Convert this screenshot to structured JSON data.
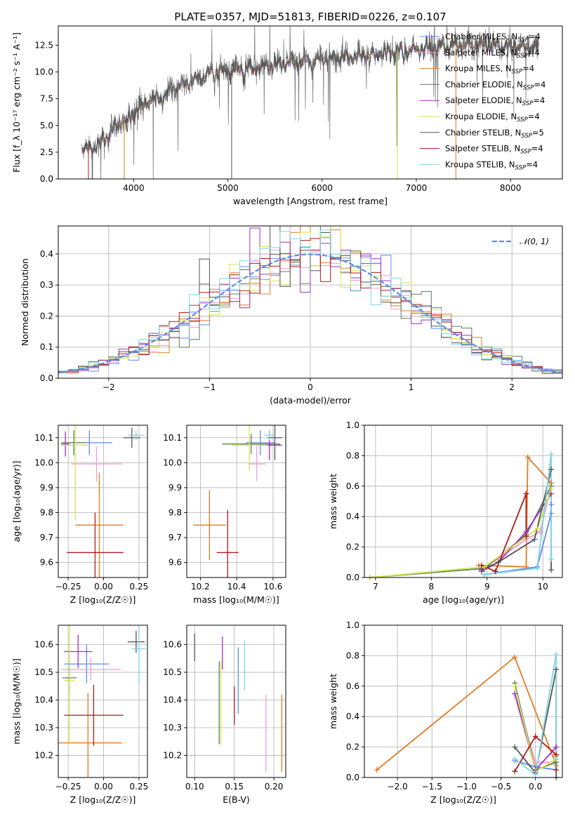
{
  "chart_data": [
    {
      "type": "line",
      "title": "PLATE=0357, MJD=51813, FIBERID=0226, z=0.107",
      "xlabel": "wavelength [Angstrom, rest frame]",
      "ylabel": "Flux [f_λ 10⁻¹⁷ erg cm⁻² s⁻¹ A⁻¹]",
      "xlim": [
        3200,
        8550
      ],
      "ylim": [
        0,
        14.3
      ],
      "xticks": [
        4000,
        5000,
        6000,
        7000,
        8000
      ],
      "yticks": [
        0.0,
        2.5,
        5.0,
        7.5,
        10.0,
        12.5
      ],
      "grid": false,
      "legend_position": "right",
      "continuum": {
        "x": [
          3450,
          3600,
          3700,
          3800,
          3900,
          4000,
          4100,
          4200,
          4300,
          4400,
          4500,
          4600,
          4700,
          4800,
          4900,
          5000,
          5200,
          5400,
          5600,
          5800,
          6000,
          6200,
          6400,
          6600,
          6800,
          7000,
          7200,
          7400,
          7600,
          7800,
          8000,
          8200,
          8300
        ],
        "y": [
          2.8,
          3.0,
          3.8,
          4.8,
          5.5,
          6.3,
          7.1,
          7.6,
          8.0,
          8.4,
          8.8,
          9.1,
          9.4,
          9.9,
          10.2,
          10.0,
          10.4,
          10.6,
          10.8,
          11.0,
          11.2,
          11.4,
          11.5,
          11.8,
          12.0,
          12.1,
          12.3,
          12.5,
          12.6,
          12.5,
          12.4,
          12.3,
          12.2
        ]
      },
      "series": [
        {
          "label": "Chabrier MILES, N",
          "sub": "SSP",
          "suffix": "=4",
          "color": "#5b8def"
        },
        {
          "label": "Salpeter MILES, N",
          "sub": "SSP",
          "suffix": "=4",
          "color": "#f09ad8"
        },
        {
          "label": "Kroupa MILES, N",
          "sub": "SSP",
          "suffix": "=4",
          "color": "#e07b24"
        },
        {
          "label": "Chabrier ELODIE, N",
          "sub": "SSP",
          "suffix": "=4",
          "color": "#5c7f5c"
        },
        {
          "label": "Salpeter ELODIE, N",
          "sub": "SSP",
          "suffix": "=4",
          "color": "#a02fc4"
        },
        {
          "label": "Kroupa ELODIE, N",
          "sub": "SSP",
          "suffix": "=4",
          "color": "#d7e64a"
        },
        {
          "label": "Chabrier STELIB, N",
          "sub": "SSP",
          "suffix": "=5",
          "color": "#555555"
        },
        {
          "label": "Salpeter STELIB, N",
          "sub": "SSP",
          "suffix": "=4",
          "color": "#b01b1b"
        },
        {
          "label": "Kroupa STELIB, N",
          "sub": "SSP",
          "suffix": "=4",
          "color": "#7fd6e0"
        }
      ]
    },
    {
      "type": "line",
      "xlabel": "(data-model)/error",
      "ylabel": "Normed distribution",
      "xlim": [
        -2.5,
        2.5
      ],
      "ylim": [
        0,
        0.49
      ],
      "xticks": [
        -2,
        -1,
        0,
        1,
        2
      ],
      "yticks": [
        0.0,
        0.1,
        0.2,
        0.3,
        0.4
      ],
      "grid": true,
      "legend_position": "top-right",
      "legend": "𝒩(0, 1)",
      "normal_curve": {
        "mean": 0,
        "sigma": 1,
        "color": "#5b8def"
      },
      "bin_width": 0.1
    },
    {
      "type": "scatter",
      "xlabel": "Z [log₁₀(Z/Z☉)]",
      "ylabel": "age  [log₁₀(age/yr)]",
      "xlim": [
        -0.32,
        0.31
      ],
      "ylim": [
        9.54,
        10.15
      ],
      "xticks": [
        -0.25,
        0.0,
        0.25
      ],
      "yticks": [
        9.6,
        9.7,
        9.8,
        9.9,
        10.0,
        10.1
      ],
      "grid": true,
      "points": [
        {
          "x": -0.1,
          "y": 10.08,
          "xerr": 0.16,
          "yerr": 0.05,
          "color": "#5b8def"
        },
        {
          "x": -0.05,
          "y": 9.995,
          "xerr": 0.18,
          "yerr": 0.07,
          "color": "#f09ad8"
        },
        {
          "x": -0.03,
          "y": 9.75,
          "xerr": 0.17,
          "yerr": 0.21,
          "color": "#e07b24"
        },
        {
          "x": -0.21,
          "y": 10.08,
          "xerr": 0.09,
          "yerr": 0.05,
          "color": "#5c7f5c"
        },
        {
          "x": -0.27,
          "y": 10.075,
          "xerr": 0.03,
          "yerr": 0.05,
          "color": "#a02fc4"
        },
        {
          "x": -0.2,
          "y": 10.07,
          "xerr": 0.1,
          "yerr": 0.3,
          "color": "#d7e64a"
        },
        {
          "x": 0.2,
          "y": 10.1,
          "xerr": 0.06,
          "yerr": 0.04,
          "color": "#555555"
        },
        {
          "x": -0.06,
          "y": 9.64,
          "xerr": 0.2,
          "yerr": 0.16,
          "color": "#b01b1b"
        },
        {
          "x": 0.23,
          "y": 10.11,
          "xerr": 0.06,
          "yerr": 0.02,
          "color": "#7fd6e0"
        }
      ]
    },
    {
      "type": "scatter",
      "xlabel": "mass [log₁₀(M/M☉)]",
      "ylabel": "",
      "xlim": [
        10.125,
        10.67
      ],
      "ylim": [
        9.54,
        10.15
      ],
      "xticks": [
        10.2,
        10.4,
        10.6
      ],
      "yticks": [
        9.6,
        9.7,
        9.8,
        9.9,
        10.0,
        10.1
      ],
      "grid": true,
      "points": [
        {
          "x": 10.53,
          "y": 10.08,
          "xerr": 0.08,
          "yerr": 0.05,
          "color": "#5b8def"
        },
        {
          "x": 10.51,
          "y": 9.995,
          "xerr": 0.05,
          "yerr": 0.07,
          "color": "#f09ad8"
        },
        {
          "x": 10.25,
          "y": 9.75,
          "xerr": 0.09,
          "yerr": 0.14,
          "color": "#e07b24"
        },
        {
          "x": 10.48,
          "y": 10.075,
          "xerr": 0.16,
          "yerr": 0.04,
          "color": "#5c7f5c"
        },
        {
          "x": 10.58,
          "y": 10.07,
          "xerr": 0.07,
          "yerr": 0.06,
          "color": "#a02fc4"
        },
        {
          "x": 10.47,
          "y": 10.07,
          "xerr": 0.1,
          "yerr": 0.1,
          "color": "#d7e64a"
        },
        {
          "x": 10.61,
          "y": 10.1,
          "xerr": 0.04,
          "yerr": 0.09,
          "color": "#555555"
        },
        {
          "x": 10.35,
          "y": 9.64,
          "xerr": 0.06,
          "yerr": 0.17,
          "color": "#b01b1b"
        },
        {
          "x": 10.58,
          "y": 10.11,
          "xerr": 0.03,
          "yerr": 0.02,
          "color": "#7fd6e0"
        }
      ]
    },
    {
      "type": "line",
      "xlabel": "age  [log₁₀(age/yr)]",
      "ylabel": "mass weight",
      "xlim": [
        6.8,
        10.35
      ],
      "ylim": [
        0,
        1.0
      ],
      "xticks": [
        7,
        8,
        9,
        10
      ],
      "yticks": [
        0.0,
        0.2,
        0.4,
        0.6,
        0.8,
        1.0
      ],
      "grid": true,
      "series": [
        {
          "color": "#5b8def",
          "x": [
            8.95,
            9.9,
            10.15,
            10.15
          ],
          "y": [
            0.02,
            0.07,
            0.42,
            0.48
          ]
        },
        {
          "color": "#f09ad8",
          "x": [
            8.9,
            9.7,
            9.95,
            10.15
          ],
          "y": [
            0.05,
            0.25,
            0.3,
            0.6
          ]
        },
        {
          "color": "#e07b24",
          "x": [
            8.85,
            9.7,
            9.73,
            10.15
          ],
          "y": [
            0.08,
            0.07,
            0.79,
            0.62
          ]
        },
        {
          "color": "#5c7f5c",
          "x": [
            6.9,
            8.95,
            9.7,
            10.15
          ],
          "y": [
            0.0,
            0.06,
            0.28,
            0.6
          ]
        },
        {
          "color": "#a02fc4",
          "x": [
            8.9,
            9.2,
            9.7,
            10.15
          ],
          "y": [
            0.04,
            0.1,
            0.3,
            0.55
          ]
        },
        {
          "color": "#d7e64a",
          "x": [
            6.9,
            8.95,
            9.9,
            10.15
          ],
          "y": [
            0.0,
            0.07,
            0.32,
            0.58
          ]
        },
        {
          "color": "#555555",
          "x": [
            8.9,
            9.2,
            9.85,
            10.15,
            10.15
          ],
          "y": [
            0.05,
            0.1,
            0.25,
            0.71,
            0.05
          ]
        },
        {
          "color": "#b01b1b",
          "x": [
            8.9,
            9.15,
            9.7,
            9.7
          ],
          "y": [
            0.08,
            0.04,
            0.55,
            0.27
          ]
        },
        {
          "color": "#7fd6e0",
          "x": [
            8.95,
            9.9,
            10.15,
            10.15
          ],
          "y": [
            0.02,
            0.06,
            0.81,
            0.12
          ]
        }
      ]
    },
    {
      "type": "scatter",
      "xlabel": "Z [log₁₀(Z/Z☉)]",
      "ylabel": "mass [log₁₀(M/M☉)]",
      "xlim": [
        -0.32,
        0.31
      ],
      "ylim": [
        10.12,
        10.67
      ],
      "xticks": [
        -0.25,
        0.0,
        0.25
      ],
      "yticks": [
        10.2,
        10.3,
        10.4,
        10.5,
        10.6
      ],
      "grid": true,
      "points": [
        {
          "x": -0.12,
          "y": 10.53,
          "xerr": 0.16,
          "yerr": 0.07,
          "color": "#5b8def"
        },
        {
          "x": -0.09,
          "y": 10.51,
          "xerr": 0.21,
          "yerr": 0.04,
          "color": "#f09ad8"
        },
        {
          "x": -0.11,
          "y": 10.245,
          "xerr": 0.24,
          "yerr": 0.18,
          "color": "#e07b24"
        },
        {
          "x": -0.24,
          "y": 10.48,
          "xerr": 0.05,
          "yerr": 0.06,
          "color": "#5c7f5c"
        },
        {
          "x": -0.18,
          "y": 10.575,
          "xerr": 0.1,
          "yerr": 0.06,
          "color": "#a02fc4"
        },
        {
          "x": -0.24,
          "y": 10.47,
          "xerr": 0.04,
          "yerr": 0.23,
          "color": "#d7e64a"
        },
        {
          "x": 0.23,
          "y": 10.61,
          "xerr": 0.06,
          "yerr": 0.04,
          "color": "#555555"
        },
        {
          "x": -0.07,
          "y": 10.345,
          "xerr": 0.21,
          "yerr": 0.11,
          "color": "#b01b1b"
        },
        {
          "x": 0.25,
          "y": 10.585,
          "xerr": 0.05,
          "yerr": 0.13,
          "color": "#7fd6e0"
        }
      ]
    },
    {
      "type": "scatter",
      "xlabel": "E(B-V)",
      "ylabel": "",
      "xlim": [
        0.09,
        0.215
      ],
      "ylim": [
        10.12,
        10.67
      ],
      "xticks": [
        0.1,
        0.15,
        0.2
      ],
      "yticks": [
        10.2,
        10.3,
        10.4,
        10.5,
        10.6
      ],
      "grid": true,
      "points": [
        {
          "x": 0.155,
          "y": 10.47,
          "xerr": 0,
          "yerr": 0.12,
          "color": "#5b8def"
        },
        {
          "x": 0.19,
          "y": 10.28,
          "xerr": 0,
          "yerr": 0.14,
          "color": "#f09ad8"
        },
        {
          "x": 0.21,
          "y": 10.28,
          "xerr": 0,
          "yerr": 0.14,
          "color": "#e07b24"
        },
        {
          "x": 0.131,
          "y": 10.39,
          "xerr": 0,
          "yerr": 0.15,
          "color": "#5c7f5c"
        },
        {
          "x": 0.135,
          "y": 10.57,
          "xerr": 0,
          "yerr": 0.06,
          "color": "#a02fc4"
        },
        {
          "x": 0.133,
          "y": 10.39,
          "xerr": 0,
          "yerr": 0.15,
          "color": "#d7e64a"
        },
        {
          "x": 0.1,
          "y": 10.59,
          "xerr": 0,
          "yerr": 0.05,
          "color": "#555555"
        },
        {
          "x": 0.15,
          "y": 10.38,
          "xerr": 0,
          "yerr": 0.07,
          "color": "#b01b1b"
        },
        {
          "x": 0.163,
          "y": 10.525,
          "xerr": 0,
          "yerr": 0.09,
          "color": "#7fd6e0"
        }
      ]
    },
    {
      "type": "line",
      "xlabel": "Z [log₁₀(Z/Z☉)]",
      "ylabel": "mass weight",
      "xlim": [
        -2.48,
        0.39
      ],
      "ylim": [
        0,
        1.0
      ],
      "xticks": [
        -2.0,
        -1.5,
        -1.0,
        -0.5,
        0.0
      ],
      "yticks": [
        0.0,
        0.2,
        0.4,
        0.6,
        0.8,
        1.0
      ],
      "grid": true,
      "series": [
        {
          "color": "#5b8def",
          "x": [
            -0.3,
            0.0,
            0.3,
            0.3
          ],
          "y": [
            0.11,
            0.07,
            0.05,
            0.1
          ]
        },
        {
          "color": "#f09ad8",
          "x": [
            -0.3,
            0.0,
            0.3
          ],
          "y": [
            0.55,
            0.1,
            0.1
          ]
        },
        {
          "color": "#e07b24",
          "x": [
            -2.3,
            -0.3,
            0.3,
            0.3
          ],
          "y": [
            0.05,
            0.79,
            0.08,
            0.14
          ]
        },
        {
          "color": "#5c7f5c",
          "x": [
            -0.3,
            0.0,
            0.3
          ],
          "y": [
            0.62,
            0.05,
            0.1
          ]
        },
        {
          "color": "#a02fc4",
          "x": [
            -0.3,
            0.0,
            0.3
          ],
          "y": [
            0.55,
            0.05,
            0.2
          ]
        },
        {
          "color": "#d7e64a",
          "x": [
            -0.3,
            0.0,
            0.3
          ],
          "y": [
            0.6,
            0.04,
            0.12
          ]
        },
        {
          "color": "#555555",
          "x": [
            -0.3,
            0.0,
            0.3,
            0.3
          ],
          "y": [
            0.2,
            0.03,
            0.71,
            0.0
          ]
        },
        {
          "color": "#b01b1b",
          "x": [
            -0.3,
            0.0,
            0.3,
            0.3
          ],
          "y": [
            0.04,
            0.27,
            0.15,
            0.05
          ]
        },
        {
          "color": "#7fd6e0",
          "x": [
            -0.3,
            0.0,
            0.3,
            0.3
          ],
          "y": [
            0.12,
            0.02,
            0.81,
            0.12
          ]
        }
      ]
    }
  ]
}
